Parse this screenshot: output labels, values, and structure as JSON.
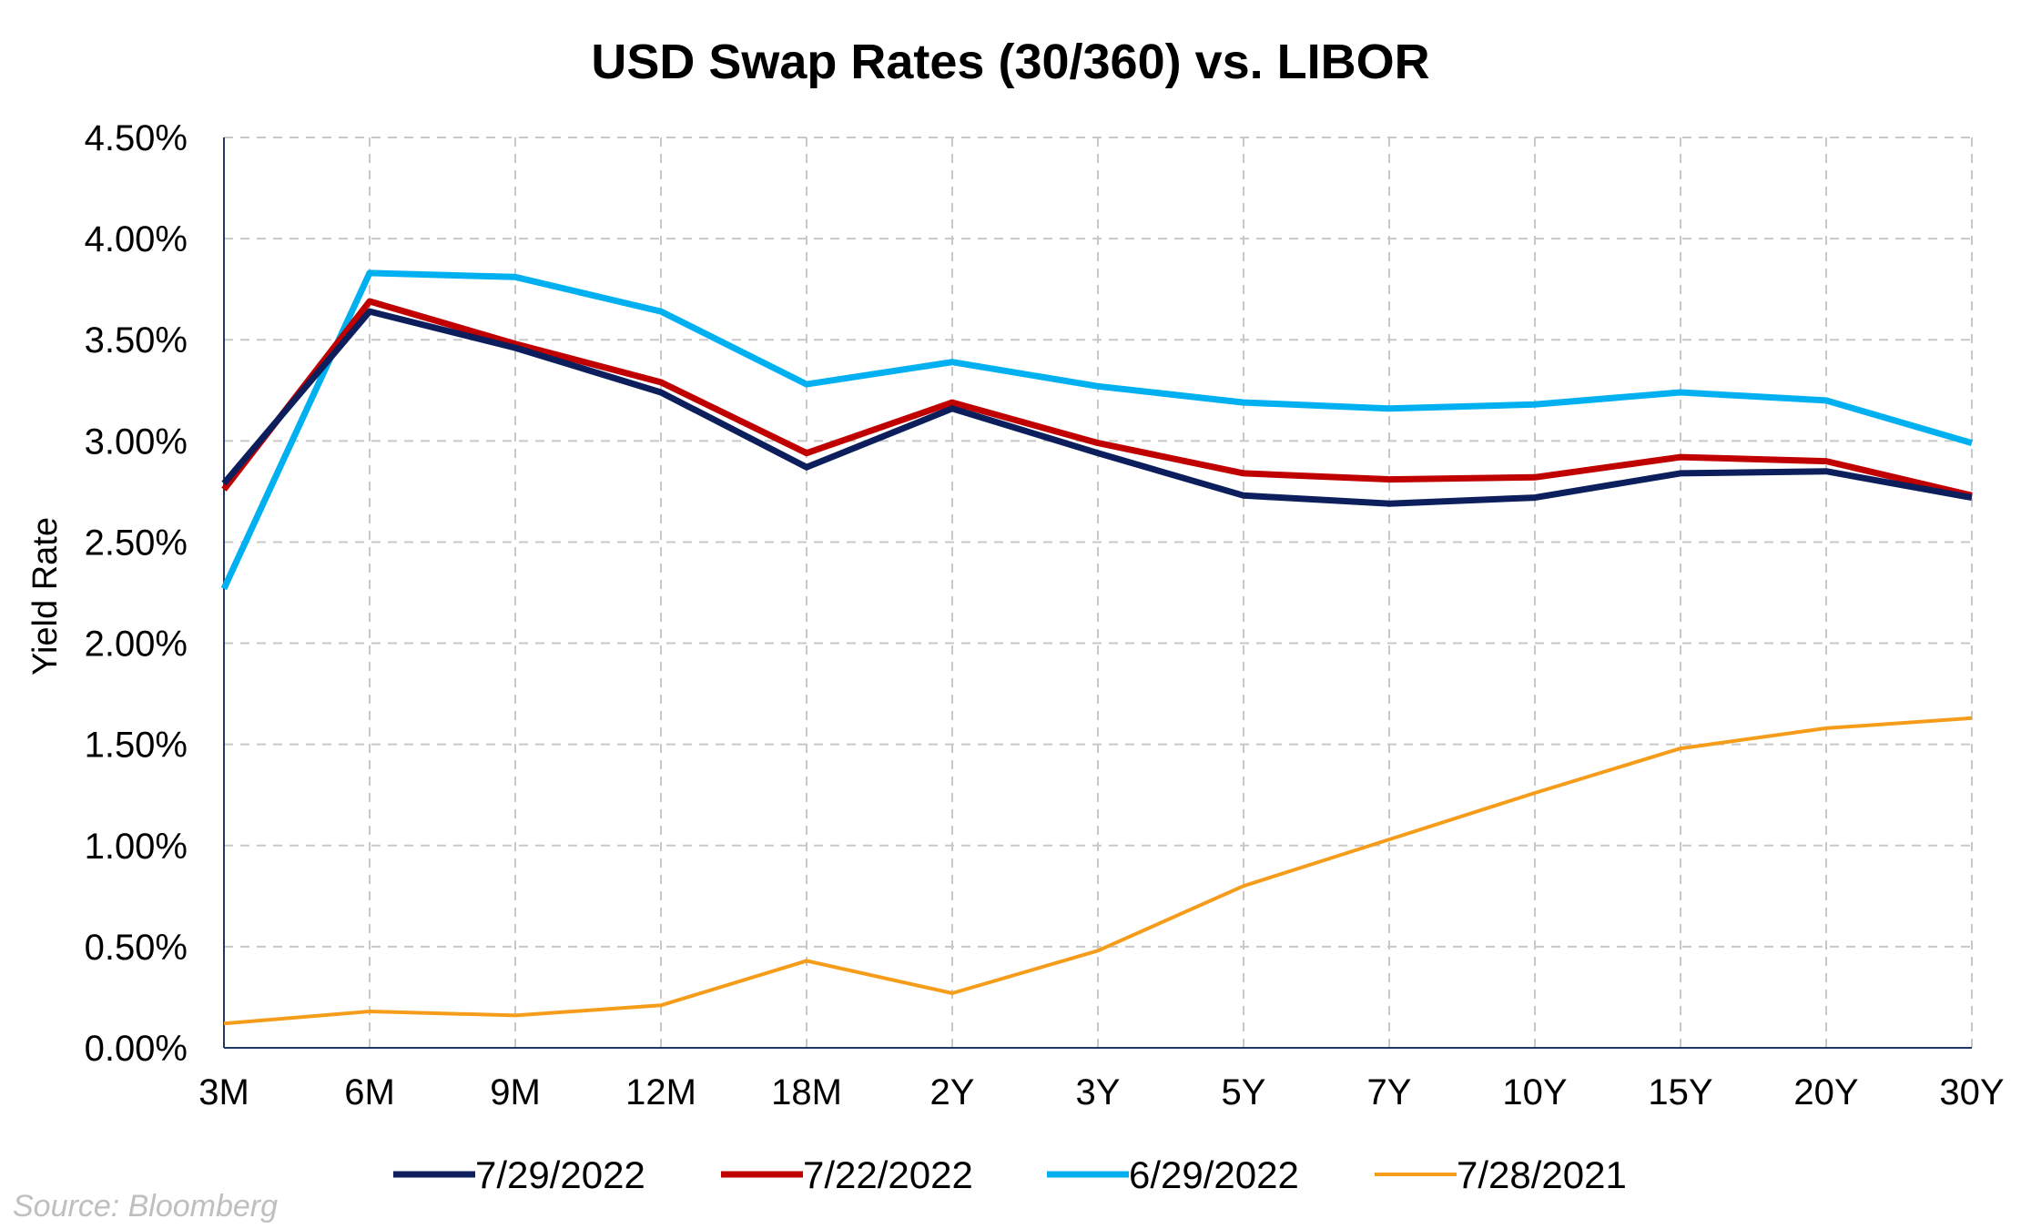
{
  "colors": {
    "series_7_29_2022": "#0c1f5c",
    "series_7_22_2022": "#c00000",
    "series_6_29_2022": "#00b0f0",
    "series_7_28_2021": "#f59c1a",
    "grid": "#c8c8c8",
    "axis": "#1f3864",
    "source": "#bfbfbf"
  },
  "source": "Source: Bloomberg",
  "chart_data": {
    "type": "line",
    "title": "USD Swap Rates (30/360) vs. LIBOR",
    "xlabel": "",
    "ylabel": "Yield Rate",
    "categories": [
      "3M",
      "6M",
      "9M",
      "12M",
      "18M",
      "2Y",
      "3Y",
      "5Y",
      "7Y",
      "10Y",
      "15Y",
      "20Y",
      "30Y"
    ],
    "ylim": [
      0,
      4.5
    ],
    "y_ticks": [
      0,
      0.5,
      1.0,
      1.5,
      2.0,
      2.5,
      3.0,
      3.5,
      4.0,
      4.5
    ],
    "y_tick_labels": [
      "0.00%",
      "0.50%",
      "1.00%",
      "1.50%",
      "2.00%",
      "2.50%",
      "3.00%",
      "3.50%",
      "4.00%",
      "4.50%"
    ],
    "grid": true,
    "legend_position": "bottom",
    "series": [
      {
        "name": "7/29/2022",
        "color_key": "series_7_29_2022",
        "values": [
          2.79,
          3.64,
          3.46,
          3.24,
          2.87,
          3.16,
          2.94,
          2.73,
          2.69,
          2.72,
          2.84,
          2.85,
          2.72
        ]
      },
      {
        "name": "7/22/2022",
        "color_key": "series_7_22_2022",
        "values": [
          2.76,
          3.69,
          3.48,
          3.29,
          2.94,
          3.19,
          2.99,
          2.84,
          2.81,
          2.82,
          2.92,
          2.9,
          2.73
        ]
      },
      {
        "name": "6/29/2022",
        "color_key": "series_6_29_2022",
        "values": [
          2.27,
          3.83,
          3.81,
          3.64,
          3.28,
          3.39,
          3.27,
          3.19,
          3.16,
          3.18,
          3.24,
          3.2,
          2.99
        ]
      },
      {
        "name": "7/28/2021",
        "color_key": "series_7_28_2021",
        "values": [
          0.12,
          0.18,
          0.16,
          0.21,
          0.43,
          0.27,
          0.48,
          0.8,
          1.03,
          1.26,
          1.48,
          1.58,
          1.63
        ]
      }
    ]
  }
}
